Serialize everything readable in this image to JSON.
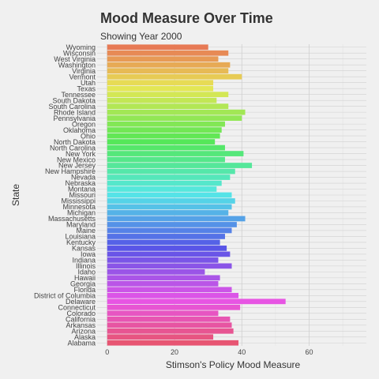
{
  "chart_data": {
    "type": "bar",
    "orientation": "horizontal",
    "title": "Mood Measure Over Time",
    "subtitle": "Showing Year 2000",
    "xlabel": "Stimson's Policy Mood Measure",
    "ylabel": "State",
    "xlim": [
      -3,
      77
    ],
    "xticks": [
      0,
      20,
      40,
      60
    ],
    "grid": true,
    "legend": "none",
    "categories": [
      "Alabama",
      "Alaska",
      "Arizona",
      "Arkansas",
      "California",
      "Colorado",
      "Connecticut",
      "Delaware",
      "District of Columbia",
      "Florida",
      "Georgia",
      "Hawaii",
      "Idaho",
      "Illinois",
      "Indiana",
      "Iowa",
      "Kansas",
      "Kentucky",
      "Louisiana",
      "Maine",
      "Maryland",
      "Massachusetts",
      "Michigan",
      "Minnesota",
      "Mississippi",
      "Missouri",
      "Montana",
      "Nebraska",
      "Nevada",
      "New Hampshire",
      "New Jersey",
      "New Mexico",
      "New York",
      "North Carolina",
      "North Dakota",
      "Ohio",
      "Oklahoma",
      "Oregon",
      "Pennsylvania",
      "Rhode Island",
      "South Carolina",
      "South Dakota",
      "Tennessee",
      "Texas",
      "Utah",
      "Vermont",
      "Virginia",
      "Washington",
      "West Virginia",
      "Wisconsin",
      "Wyoming"
    ],
    "values": [
      39,
      31.5,
      37.5,
      37,
      36.5,
      33,
      39.5,
      53,
      39,
      37,
      33,
      33.5,
      29,
      37,
      33,
      36.5,
      35.5,
      33.5,
      35,
      37,
      38.5,
      41,
      36,
      37,
      38,
      37,
      32.5,
      34,
      36.5,
      38,
      43,
      35,
      40.5,
      35,
      32,
      33.5,
      34,
      35,
      40,
      41,
      36,
      32.5,
      36,
      31.5,
      31.5,
      40,
      36,
      36.5,
      33,
      36,
      30
    ]
  }
}
